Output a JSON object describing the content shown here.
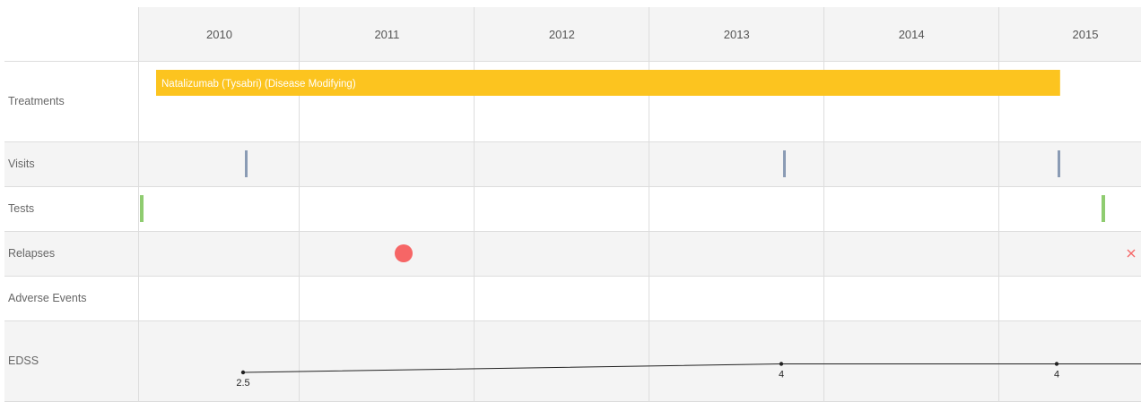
{
  "chart_data": {
    "type": "timeline",
    "years": [
      "2010",
      "2011",
      "2012",
      "2013",
      "2014",
      "2015"
    ],
    "x_range": [
      2009.6,
      2015.35
    ],
    "rows": {
      "treatments": "Treatments",
      "visits": "Visits",
      "tests": "Tests",
      "relapses": "Relapses",
      "adverse_events": "Adverse Events",
      "edss": "EDSS"
    },
    "treatments": [
      {
        "label": "Natalizumab (Tysabri) (Disease Modifying)",
        "start": 2009.7,
        "end": 2015.35
      }
    ],
    "visits": [
      2009.8,
      2013.25,
      2015.05
    ],
    "tests": [
      2009.6,
      2015.1
    ],
    "relapses": [
      {
        "date": 2011.1,
        "marker": "circle"
      },
      {
        "date": 2015.3,
        "marker": "cross"
      }
    ],
    "adverse_events": [],
    "edss": {
      "points": [
        {
          "date": 2009.8,
          "value": 2.5,
          "label": "2.5"
        },
        {
          "date": 2013.25,
          "value": 4,
          "label": "4"
        },
        {
          "date": 2015.05,
          "value": 4,
          "label": "4"
        }
      ],
      "extends_to": 2015.35,
      "ylim": [
        0,
        10
      ]
    },
    "colors": {
      "treatment": "#fcc41f",
      "visit": "#8a9bb4",
      "test": "#8fcc70",
      "relapse": "#f66666",
      "line": "#222222",
      "grid": "#dddddd",
      "band": "#f4f4f4"
    }
  }
}
